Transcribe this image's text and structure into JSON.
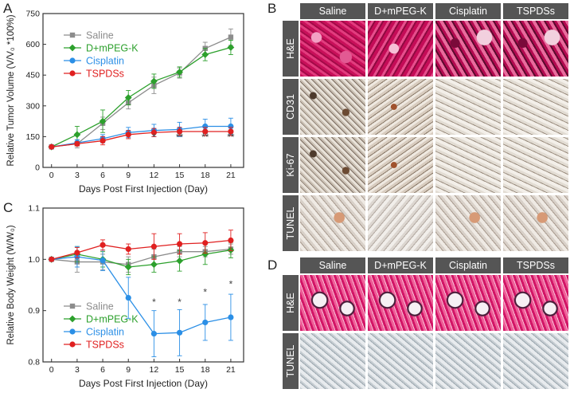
{
  "panels": {
    "A": "A",
    "B": "B",
    "C": "C",
    "D": "D"
  },
  "colors": {
    "saline": "#8c8c8c",
    "dmpeg": "#2ca02c",
    "cisplatin": "#2b8fe6",
    "tspds": "#e02020"
  },
  "chart_data": [
    {
      "type": "line",
      "panel": "A",
      "xlabel": "Days Post First Injection (Day)",
      "ylabel": "Relative Tumor Volume (V/V₀ *100%)",
      "x": [
        0,
        3,
        6,
        9,
        12,
        15,
        18,
        21
      ],
      "xlim": [
        -1,
        22.5
      ],
      "ylim": [
        0,
        750
      ],
      "yticks": [
        0,
        150,
        300,
        450,
        600,
        750
      ],
      "legend_position": "top-left",
      "series": [
        {
          "name": "Saline",
          "color": "#8c8c8c",
          "marker": "square",
          "values": [
            100,
            115,
            215,
            315,
            400,
            460,
            580,
            635
          ],
          "errors": [
            5,
            20,
            30,
            30,
            40,
            25,
            30,
            40
          ]
        },
        {
          "name": "D+mPEG-K",
          "color": "#2ca02c",
          "marker": "diamond",
          "values": [
            100,
            160,
            225,
            340,
            420,
            465,
            550,
            585
          ],
          "errors": [
            5,
            40,
            55,
            35,
            35,
            25,
            30,
            35
          ]
        },
        {
          "name": "Cisplatin",
          "color": "#2b8fe6",
          "marker": "circle",
          "values": [
            100,
            120,
            140,
            170,
            180,
            185,
            200,
            200
          ],
          "errors": [
            5,
            15,
            20,
            25,
            30,
            35,
            35,
            40
          ]
        },
        {
          "name": "TSPDSs",
          "color": "#e02020",
          "marker": "circle",
          "values": [
            100,
            115,
            130,
            160,
            170,
            175,
            175,
            175
          ],
          "errors": [
            5,
            10,
            20,
            20,
            20,
            20,
            20,
            20
          ]
        }
      ],
      "annotations": [
        {
          "x": 12,
          "y": 132,
          "text": "*"
        },
        {
          "x": 15,
          "y": 132,
          "text": "**"
        },
        {
          "x": 18,
          "y": 132,
          "text": "**"
        },
        {
          "x": 21,
          "y": 132,
          "text": "**"
        }
      ]
    },
    {
      "type": "line",
      "panel": "C",
      "xlabel": "Days Post First Injection (Day)",
      "ylabel": "Relative Body Weight (W/W₀)",
      "x": [
        0,
        3,
        6,
        9,
        12,
        15,
        18,
        21
      ],
      "xlim": [
        -1,
        22.5
      ],
      "ylim": [
        0.8,
        1.1
      ],
      "yticks": [
        0.8,
        0.9,
        1.0,
        1.1
      ],
      "legend_position": "bottom-left",
      "series": [
        {
          "name": "Saline",
          "color": "#8c8c8c",
          "marker": "square",
          "values": [
            1.0,
            0.995,
            0.995,
            0.99,
            1.005,
            1.015,
            1.015,
            1.02
          ],
          "errors": [
            0.002,
            0.02,
            0.015,
            0.015,
            0.015,
            0.01,
            0.01,
            0.01
          ]
        },
        {
          "name": "D+mPEG-K",
          "color": "#2ca02c",
          "marker": "diamond",
          "values": [
            1.0,
            1.01,
            1.0,
            0.985,
            0.99,
            0.997,
            1.01,
            1.018
          ],
          "errors": [
            0.002,
            0.015,
            0.015,
            0.015,
            0.015,
            0.02,
            0.02,
            0.015
          ]
        },
        {
          "name": "Cisplatin",
          "color": "#2b8fe6",
          "marker": "circle",
          "values": [
            1.0,
            1.005,
            0.998,
            0.925,
            0.855,
            0.857,
            0.877,
            0.887
          ],
          "errors": [
            0.002,
            0.02,
            0.02,
            0.04,
            0.045,
            0.045,
            0.035,
            0.045
          ]
        },
        {
          "name": "TSPDSs",
          "color": "#e02020",
          "marker": "circle",
          "values": [
            1.0,
            1.013,
            1.028,
            1.02,
            1.025,
            1.03,
            1.032,
            1.037
          ],
          "errors": [
            0.002,
            0.01,
            0.01,
            0.01,
            0.025,
            0.02,
            0.02,
            0.02
          ]
        }
      ],
      "annotations": [
        {
          "x": 12,
          "y": 0.91,
          "text": "*"
        },
        {
          "x": 15,
          "y": 0.91,
          "text": "*"
        },
        {
          "x": 18,
          "y": 0.93,
          "text": "*"
        },
        {
          "x": 21,
          "y": 0.945,
          "text": "*"
        }
      ]
    }
  ],
  "panel_b": {
    "columns": [
      "Saline",
      "D+mPEG-K",
      "Cisplatin",
      "TSPDSs"
    ],
    "rows": [
      "H&E",
      "CD31",
      "Ki-67",
      "TUNEL"
    ]
  },
  "panel_d": {
    "columns": [
      "Saline",
      "D+mPEG-K",
      "Cisplatin",
      "TSPDSs"
    ],
    "rows": [
      "H&E",
      "TUNEL"
    ]
  }
}
